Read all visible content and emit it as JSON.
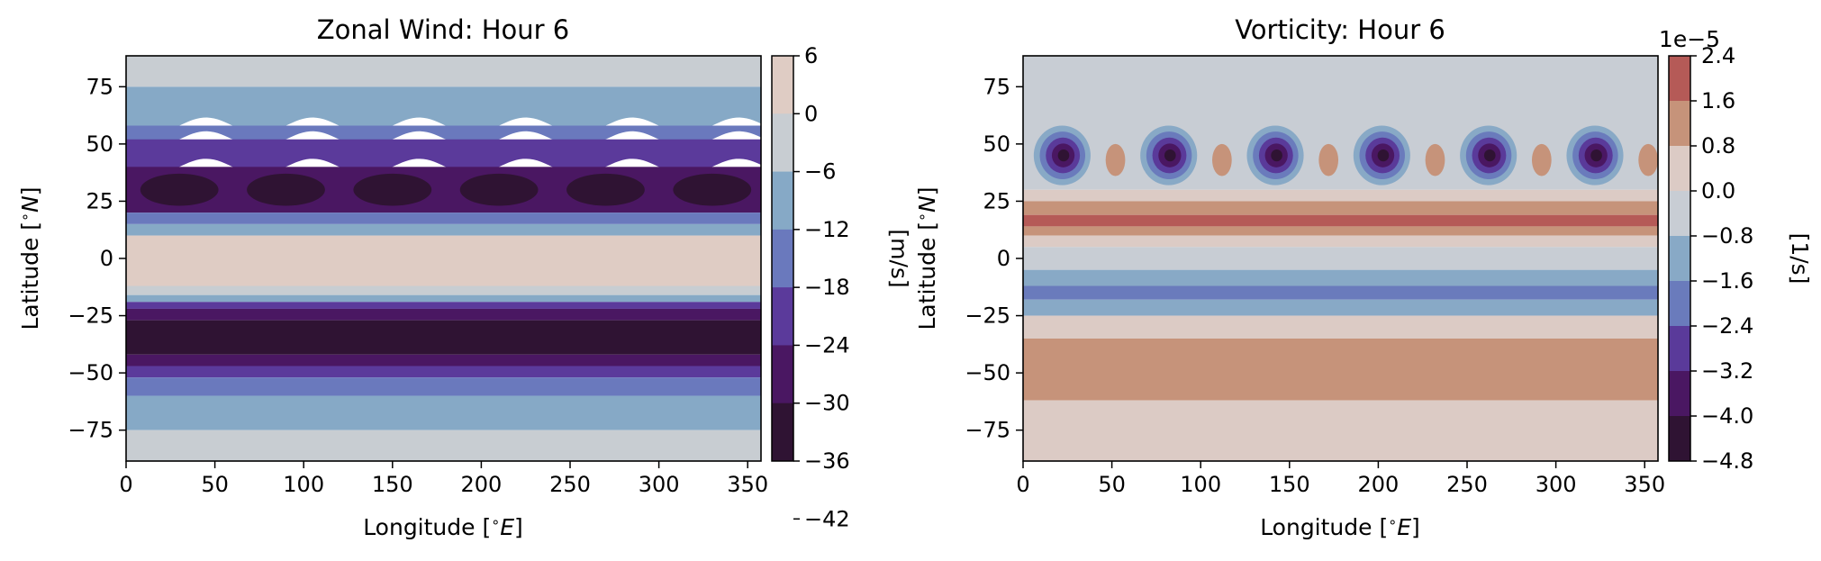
{
  "chart_data": [
    {
      "type": "contourf",
      "title": "Zonal Wind: Hour 6",
      "xlabel": "Longitude [$^{\\circ}E$]",
      "ylabel": "Latitude [$^{\\circ}N$]",
      "xlabel_text": "Longitude [",
      "xlabel_unit": "∘",
      "xlabel_letter": "E",
      "xlabel_close": "]",
      "ylabel_text": "Latitude [",
      "ylabel_unit": "∘",
      "ylabel_letter": "N",
      "ylabel_close": "]",
      "xlim": [
        0,
        357.5
      ],
      "ylim": [
        -88.5,
        88.5
      ],
      "xticks": [
        0,
        50,
        100,
        150,
        200,
        250,
        300,
        350
      ],
      "yticks": [
        75,
        50,
        25,
        0,
        -25,
        -50,
        -75
      ],
      "colorbar": {
        "label": "[m/s]",
        "levels": [
          6,
          0,
          -6,
          -12,
          -18,
          -24,
          -30,
          -36,
          -42
        ],
        "tick_labels": [
          "6",
          "0",
          "−6",
          "−12",
          "−18",
          "−24",
          "−30",
          "−36",
          "−42"
        ],
        "colors_top_to_bottom": [
          "#dfccc4",
          "#c8cdd2",
          "#86a9c6",
          "#6a79bd",
          "#5b3a9b",
          "#4a1762",
          "#2f1333"
        ]
      },
      "wave_number": 6,
      "bands_lat_ranges": [
        {
          "from": 88.5,
          "to": 75,
          "level_index": 1
        },
        {
          "from": 75,
          "to": 58,
          "level_index": 2,
          "wavy": true
        },
        {
          "from": 58,
          "to": 52,
          "level_index": 3,
          "wavy": true
        },
        {
          "from": 52,
          "to": 40,
          "level_index": 4,
          "wavy": true
        },
        {
          "from": 40,
          "to": 20,
          "level_index": 5
        },
        {
          "from": 20,
          "to": 15,
          "level_index": 3
        },
        {
          "from": 15,
          "to": 10,
          "level_index": 2
        },
        {
          "from": 10,
          "to": -12,
          "level_index": 0
        },
        {
          "from": -12,
          "to": -16,
          "level_index": 1
        },
        {
          "from": -16,
          "to": -19,
          "level_index": 2
        },
        {
          "from": -19,
          "to": -22,
          "level_index": 4
        },
        {
          "from": -22,
          "to": -27,
          "level_index": 5
        },
        {
          "from": -27,
          "to": -42,
          "level_index": 6
        },
        {
          "from": -42,
          "to": -47,
          "level_index": 5
        },
        {
          "from": -47,
          "to": -52,
          "level_index": 4
        },
        {
          "from": -52,
          "to": -60,
          "level_index": 3
        },
        {
          "from": -60,
          "to": -75,
          "level_index": 2
        },
        {
          "from": -75,
          "to": -88.5,
          "level_index": 1
        }
      ],
      "min_cores": {
        "lat": 30,
        "lon_centers": [
          30,
          90,
          150,
          210,
          270,
          330
        ],
        "level_index": 6
      }
    },
    {
      "type": "contourf",
      "title": "Vorticity: Hour 6",
      "xlabel": "Longitude [$^{\\circ}E$]",
      "ylabel": "Latitude [$^{\\circ}N$]",
      "xlabel_text": "Longitude [",
      "xlabel_unit": "∘",
      "xlabel_letter": "E",
      "xlabel_close": "]",
      "ylabel_text": "Latitude [",
      "ylabel_unit": "∘",
      "ylabel_letter": "N",
      "ylabel_close": "]",
      "xlim": [
        0,
        357.5
      ],
      "ylim": [
        -88.5,
        88.5
      ],
      "xticks": [
        0,
        50,
        100,
        150,
        200,
        250,
        300,
        350
      ],
      "yticks": [
        75,
        50,
        25,
        0,
        -25,
        -50,
        -75
      ],
      "colorbar": {
        "label": "[1/s]",
        "offset_text": "1e−5",
        "levels": [
          2.4,
          1.6,
          0.8,
          0.0,
          -0.8,
          -1.6,
          -2.4,
          -3.2,
          -4.0,
          -4.8
        ],
        "tick_labels": [
          "2.4",
          "1.6",
          "0.8",
          "0.0",
          "−0.8",
          "−1.6",
          "−2.4",
          "−3.2",
          "−4.0",
          "−4.8"
        ],
        "colors_top_to_bottom": [
          "#b55a57",
          "#c6937a",
          "#dccbc5",
          "#c8cdd4",
          "#88a9c6",
          "#6a7bbc",
          "#5a3a9a",
          "#4a1762",
          "#2f1333"
        ]
      },
      "wave_number": 6,
      "bands_lat_ranges": [
        {
          "from": 88.5,
          "to": 30,
          "level_index": 3
        },
        {
          "from": 30,
          "to": 25,
          "level_index": 2
        },
        {
          "from": 25,
          "to": 19,
          "level_index": 1
        },
        {
          "from": 19,
          "to": 14,
          "level_index": 0
        },
        {
          "from": 14,
          "to": 10,
          "level_index": 1
        },
        {
          "from": 10,
          "to": 5,
          "level_index": 2
        },
        {
          "from": 5,
          "to": -5,
          "level_index": 3
        },
        {
          "from": -5,
          "to": -12,
          "level_index": 4
        },
        {
          "from": -12,
          "to": -18,
          "level_index": 5
        },
        {
          "from": -18,
          "to": -25,
          "level_index": 4
        },
        {
          "from": -25,
          "to": -35,
          "level_index": 2
        },
        {
          "from": -35,
          "to": -62,
          "level_index": 1
        },
        {
          "from": -62,
          "to": -88.5,
          "level_index": 2
        }
      ],
      "vortices": {
        "lat": 45,
        "lon_centers": [
          22,
          82,
          142,
          202,
          262,
          322
        ],
        "ring_levels": [
          4,
          5,
          6,
          7,
          8
        ],
        "positive_blob_lon_centers": [
          52,
          112,
          172,
          232,
          292,
          352
        ],
        "positive_blob_level_index": 1
      }
    }
  ]
}
